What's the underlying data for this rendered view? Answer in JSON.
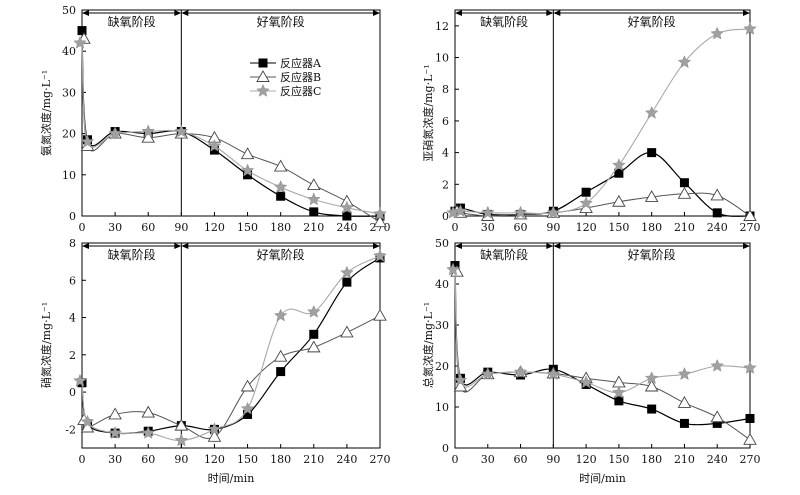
{
  "chart_data": [
    {
      "type": "line",
      "ylabel": "氨氮浓度/mg·L⁻¹",
      "xlabel": "",
      "ylim": [
        0,
        50
      ],
      "yticks": [
        0,
        10,
        20,
        30,
        40,
        50
      ],
      "xlim": [
        0,
        270
      ],
      "xticks": [
        0,
        30,
        60,
        90,
        120,
        150,
        180,
        210,
        240,
        270
      ],
      "phases": {
        "anoxic": "缺氧阶段",
        "aerobic": "好氧阶段",
        "split": 90
      },
      "legend": {
        "position": "upper-middle",
        "entries": [
          "反应器A",
          "反应器B",
          "反应器C"
        ]
      },
      "x": [
        0,
        5,
        30,
        60,
        90,
        120,
        150,
        180,
        210,
        240,
        270
      ],
      "series": [
        {
          "name": "反应器A",
          "marker": "square",
          "values": [
            45,
            18.5,
            20.5,
            20,
            20.5,
            16,
            10,
            4.8,
            1,
            0,
            0
          ]
        },
        {
          "name": "反应器B",
          "marker": "triangle",
          "values": [
            43,
            17,
            20,
            19,
            20,
            19,
            15,
            12,
            7.5,
            3.5,
            -1.5
          ]
        },
        {
          "name": "反应器C",
          "marker": "star",
          "values": [
            42,
            18,
            20,
            20.5,
            20.5,
            17,
            11,
            7,
            4,
            2,
            0.5
          ]
        }
      ]
    },
    {
      "type": "line",
      "ylabel": "亚硝氮浓度/mg·L⁻¹",
      "xlabel": "",
      "ylim": [
        0,
        13
      ],
      "yticks": [
        0,
        2,
        4,
        6,
        8,
        10,
        12
      ],
      "xlim": [
        0,
        270
      ],
      "xticks": [
        0,
        30,
        60,
        90,
        120,
        150,
        180,
        210,
        240,
        270
      ],
      "phases": {
        "anoxic": "缺氧阶段",
        "aerobic": "好氧阶段",
        "split": 90
      },
      "x": [
        0,
        5,
        30,
        60,
        90,
        120,
        150,
        180,
        210,
        240,
        270
      ],
      "series": [
        {
          "name": "反应器A",
          "marker": "square",
          "values": [
            0.3,
            0.5,
            0.1,
            0.1,
            0.3,
            1.5,
            2.7,
            4.0,
            2.1,
            0.2,
            0
          ]
        },
        {
          "name": "反应器B",
          "marker": "triangle",
          "values": [
            0.3,
            0.2,
            0,
            0.1,
            0.2,
            0.5,
            0.9,
            1.2,
            1.4,
            1.3,
            0
          ]
        },
        {
          "name": "反应器C",
          "marker": "star",
          "values": [
            0.2,
            0.3,
            0.2,
            0.2,
            0.2,
            0.8,
            3.2,
            6.5,
            9.7,
            11.5,
            11.8
          ]
        }
      ]
    },
    {
      "type": "line",
      "ylabel": "硝氮浓度/mg·L⁻¹",
      "xlabel": "时间/min",
      "ylim": [
        -3,
        8
      ],
      "yticks": [
        -2,
        0,
        2,
        4,
        6,
        8
      ],
      "xlim": [
        0,
        270
      ],
      "xticks": [
        0,
        30,
        60,
        90,
        120,
        150,
        180,
        210,
        240,
        270
      ],
      "phases": {
        "anoxic": "缺氧阶段",
        "aerobic": "好氧阶段",
        "split": 90
      },
      "x": [
        0,
        5,
        30,
        60,
        90,
        120,
        150,
        180,
        210,
        240,
        270
      ],
      "series": [
        {
          "name": "反应器A",
          "marker": "square",
          "values": [
            0.5,
            -1.7,
            -2.2,
            -2.1,
            -1.8,
            -2.0,
            -1.2,
            1.1,
            3.1,
            5.9,
            7.2
          ]
        },
        {
          "name": "反应器B",
          "marker": "triangle",
          "values": [
            -1.5,
            -1.9,
            -1.2,
            -1.1,
            -1.8,
            -2.4,
            0.3,
            1.9,
            2.4,
            3.2,
            4.1
          ]
        },
        {
          "name": "反应器C",
          "marker": "star",
          "values": [
            0.6,
            -1.6,
            -2.2,
            -2.2,
            -2.6,
            -2.0,
            -0.9,
            4.1,
            4.3,
            6.4,
            7.3
          ]
        }
      ]
    },
    {
      "type": "line",
      "ylabel": "总氮浓度/mg·L⁻¹",
      "xlabel": "时间/min",
      "ylim": [
        0,
        50
      ],
      "yticks": [
        0,
        10,
        20,
        30,
        40,
        50
      ],
      "xlim": [
        0,
        270
      ],
      "xticks": [
        0,
        30,
        60,
        90,
        120,
        150,
        180,
        210,
        240,
        270
      ],
      "phases": {
        "anoxic": "缺氧阶段",
        "aerobic": "好氧阶段",
        "split": 90
      },
      "x": [
        0,
        5,
        30,
        60,
        90,
        120,
        150,
        180,
        210,
        240,
        270
      ],
      "series": [
        {
          "name": "反应器A",
          "marker": "square",
          "values": [
            44.5,
            17,
            18.5,
            17.8,
            19.2,
            15.5,
            11.5,
            9.5,
            6,
            6,
            7.2
          ]
        },
        {
          "name": "反应器B",
          "marker": "triangle",
          "values": [
            43,
            15,
            18,
            18.5,
            18.2,
            17,
            16,
            15,
            11,
            7.5,
            2
          ]
        },
        {
          "name": "反应器C",
          "marker": "star",
          "values": [
            43.5,
            16.5,
            18,
            18.5,
            18,
            16,
            13.5,
            17,
            18,
            20,
            19.5
          ]
        }
      ]
    }
  ]
}
